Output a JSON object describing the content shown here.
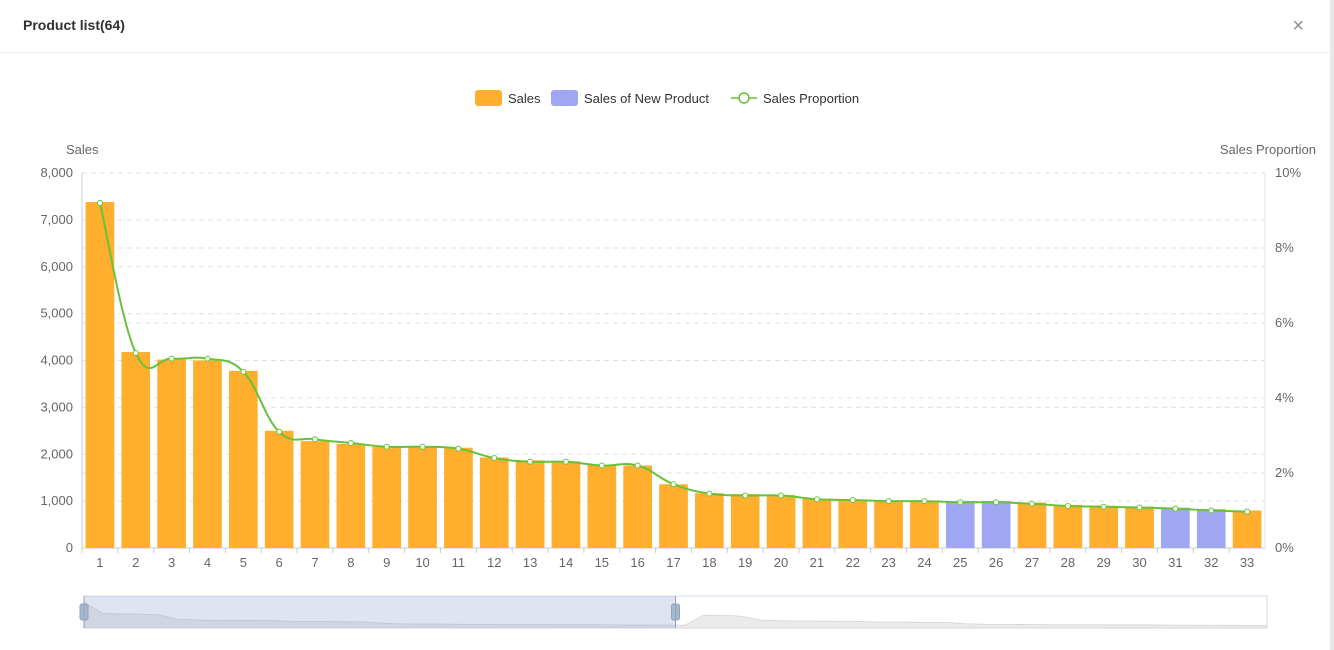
{
  "dialog": {
    "title": "Product list(64)",
    "close_symbol": "×"
  },
  "colors": {
    "sales": "#ffae2e",
    "new_product": "#a0a7f2",
    "proportion_line": "#67c23a",
    "grid": "#e0e0e0",
    "axis": "#cccccc"
  },
  "chart_data": {
    "type": "bar",
    "legend": [
      "Sales",
      "Sales of New Product",
      "Sales Proportion"
    ],
    "legend_position": "top-center",
    "ylabel": "Sales",
    "y2label": "Sales Proportion",
    "ylim": [
      0,
      8000
    ],
    "y_ticks": [
      "0",
      "1,000",
      "2,000",
      "3,000",
      "4,000",
      "5,000",
      "6,000",
      "7,000",
      "8,000"
    ],
    "y2lim": [
      0,
      10
    ],
    "y2_ticks": [
      "0%",
      "2%",
      "4%",
      "6%",
      "8%",
      "10%"
    ],
    "categories": [
      "1",
      "2",
      "3",
      "4",
      "5",
      "6",
      "7",
      "8",
      "9",
      "10",
      "11",
      "12",
      "13",
      "14",
      "15",
      "16",
      "17",
      "18",
      "19",
      "20",
      "21",
      "22",
      "23",
      "24",
      "25",
      "26",
      "27",
      "28",
      "29",
      "30",
      "31",
      "32",
      "33"
    ],
    "sales": [
      7380,
      4180,
      4020,
      4000,
      3780,
      2500,
      2280,
      2220,
      2160,
      2160,
      2140,
      1930,
      1870,
      1850,
      1770,
      1760,
      1360,
      1170,
      1150,
      1130,
      1050,
      1030,
      1010,
      1010,
      1000,
      1000,
      970,
      920,
      900,
      880,
      860,
      830,
      800
    ],
    "new_product_indices": [
      24,
      25,
      30,
      31
    ],
    "proportion": [
      9.2,
      5.2,
      5.05,
      5.05,
      4.7,
      3.1,
      2.9,
      2.8,
      2.7,
      2.7,
      2.65,
      2.4,
      2.3,
      2.3,
      2.2,
      2.2,
      1.7,
      1.45,
      1.4,
      1.4,
      1.3,
      1.28,
      1.25,
      1.25,
      1.22,
      1.22,
      1.18,
      1.12,
      1.1,
      1.08,
      1.05,
      1.0,
      0.97
    ],
    "grid": true
  }
}
